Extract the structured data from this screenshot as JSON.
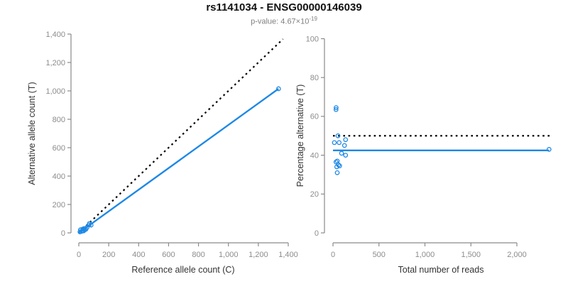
{
  "header": {
    "title": "rs1141034 - ENSG00000146039",
    "pvalue_base": "p-value: 4.67×10",
    "pvalue_exponent": "-19"
  },
  "colors": {
    "accent_blue": "#1E88E5",
    "reference_line": "#000000",
    "axis_line": "#8a8a8a",
    "tick_label": "#8c8c8c",
    "axis_title": "#333333",
    "title_text": "#111111",
    "subtitle_text": "#808080",
    "background": "#ffffff"
  },
  "chart_data": [
    {
      "type": "scatter",
      "panel": "left",
      "title": "",
      "xlabel": "Reference allele count (C)",
      "ylabel": "Alternative allele count (T)",
      "xlim": [
        0,
        1400
      ],
      "ylim": [
        0,
        1400
      ],
      "grid": false,
      "legend": "none",
      "marker": "open-circle",
      "xticks": {
        "values": [
          0,
          200,
          400,
          600,
          800,
          1000,
          1200,
          1400
        ],
        "labels": [
          "0",
          "200",
          "400",
          "600",
          "800",
          "1,000",
          "1,200",
          "1,400"
        ]
      },
      "yticks": {
        "values": [
          0,
          200,
          400,
          600,
          800,
          1000,
          1200,
          1400
        ],
        "labels": [
          "0",
          "200",
          "400",
          "600",
          "800",
          "1,000",
          "1,200",
          "1,400"
        ]
      },
      "points": [
        [
          12,
          22
        ],
        [
          12,
          21
        ],
        [
          27,
          27
        ],
        [
          8,
          7
        ],
        [
          36,
          31
        ],
        [
          71,
          66
        ],
        [
          69,
          56
        ],
        [
          55,
          38
        ],
        [
          82,
          55
        ],
        [
          29,
          17
        ],
        [
          21,
          12
        ],
        [
          39,
          21
        ],
        [
          47,
          25
        ],
        [
          27,
          14
        ],
        [
          32,
          14
        ],
        [
          1335,
          1015
        ]
      ],
      "lines": [
        {
          "name": "identity-line",
          "style": "dotted",
          "color": "#000000",
          "x": [
            0,
            1365
          ],
          "y": [
            0,
            1365
          ]
        },
        {
          "name": "fit-line",
          "style": "solid",
          "color": "#1E88E5",
          "x": [
            0,
            1335
          ],
          "y": [
            0,
            1015
          ]
        }
      ]
    },
    {
      "type": "scatter",
      "panel": "right",
      "title": "",
      "xlabel": "Total number of reads",
      "ylabel": "Percentage alternative (T)",
      "xlim": [
        0,
        2400
      ],
      "ylim": [
        0,
        100
      ],
      "grid": false,
      "legend": "none",
      "marker": "open-circle",
      "xticks": {
        "values": [
          0,
          500,
          1000,
          1500,
          2000
        ],
        "labels": [
          "0",
          "500",
          "1,000",
          "1,500",
          "2,000"
        ]
      },
      "yticks": {
        "values": [
          0,
          20,
          40,
          60,
          80,
          100
        ],
        "labels": [
          "0",
          "20",
          "40",
          "60",
          "80",
          "100"
        ]
      },
      "points": [
        [
          34,
          64.5
        ],
        [
          33,
          63.5
        ],
        [
          54,
          50
        ],
        [
          137,
          48
        ],
        [
          15,
          46.5
        ],
        [
          67,
          46.5
        ],
        [
          125,
          45
        ],
        [
          93,
          41
        ],
        [
          137,
          40
        ],
        [
          46,
          37
        ],
        [
          33,
          36.5
        ],
        [
          60,
          35
        ],
        [
          72,
          34.5
        ],
        [
          41,
          34
        ],
        [
          46,
          31
        ],
        [
          2350,
          43
        ]
      ],
      "lines": [
        {
          "name": "fifty-percent-line",
          "style": "dotted",
          "color": "#000000",
          "x": [
            0,
            2370
          ],
          "y": [
            50,
            50
          ]
        },
        {
          "name": "mean-ratio-line",
          "style": "solid",
          "color": "#1E88E5",
          "x": [
            0,
            2350
          ],
          "y": [
            42.5,
            42.5
          ]
        }
      ]
    }
  ]
}
